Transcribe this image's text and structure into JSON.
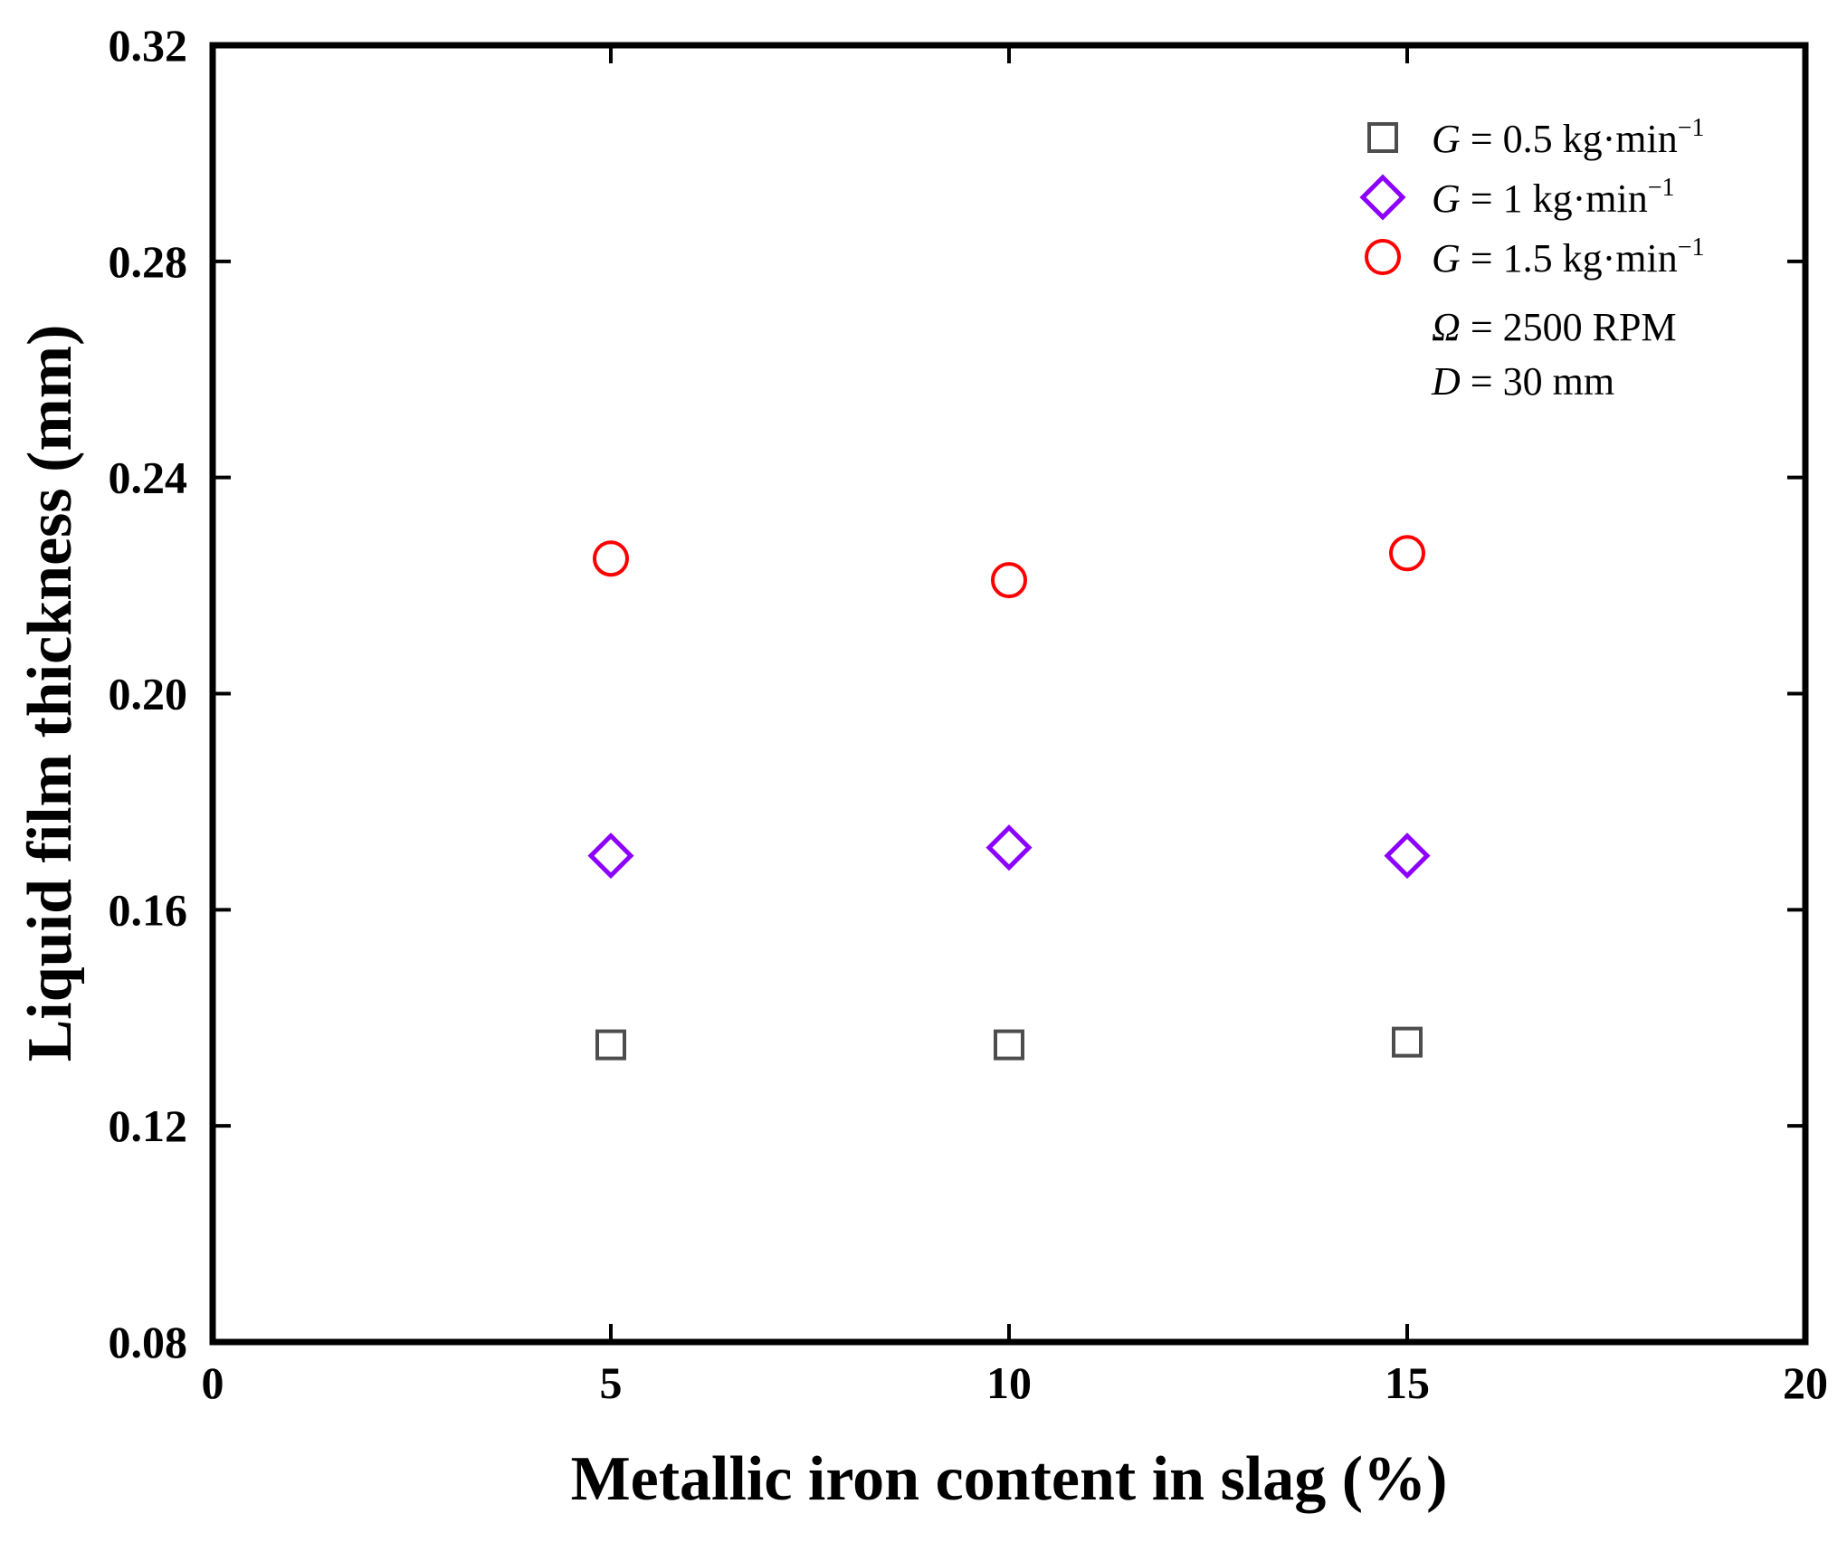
{
  "chart_data": {
    "type": "scatter",
    "title": "",
    "xlabel": "Metallic iron content in slag (%)",
    "ylabel": "Liquid film thickness (mm)",
    "xlim": [
      0,
      20
    ],
    "ylim": [
      0.08,
      0.32
    ],
    "xticks": [
      0,
      5,
      10,
      15,
      20
    ],
    "yticks": [
      0.08,
      0.12,
      0.16,
      0.2,
      0.24,
      0.28,
      0.32
    ],
    "xtick_labels": [
      "0",
      "5",
      "10",
      "15",
      "20"
    ],
    "ytick_labels": [
      "0.08",
      "0.12",
      "0.16",
      "0.20",
      "0.24",
      "0.28",
      "0.32"
    ],
    "grid": false,
    "legend_position": "top-right",
    "series": [
      {
        "name": "G = 0.5 kg·min−1",
        "var": "G",
        "text": " = 0.5 kg·min",
        "sup": "−1",
        "marker": "square",
        "color": "#4d4d4d",
        "x": [
          5,
          10,
          15
        ],
        "y": [
          0.135,
          0.135,
          0.1355
        ]
      },
      {
        "name": "G = 1 kg·min−1",
        "var": "G",
        "text": " = 1 kg·min",
        "sup": "−1",
        "marker": "diamond",
        "color": "#8c00ff",
        "x": [
          5,
          10,
          15
        ],
        "y": [
          0.17,
          0.1715,
          0.17
        ]
      },
      {
        "name": "G = 1.5 kg·min−1",
        "var": "G",
        "text": " = 1.5 kg·min",
        "sup": "−1",
        "marker": "circle",
        "color": "#ff0000",
        "x": [
          5,
          10,
          15
        ],
        "y": [
          0.225,
          0.221,
          0.226
        ]
      }
    ],
    "annotations": [
      {
        "var": "Ω",
        "text": " = 2500 RPM"
      },
      {
        "var": "D",
        "text": " = 30 mm"
      }
    ]
  }
}
